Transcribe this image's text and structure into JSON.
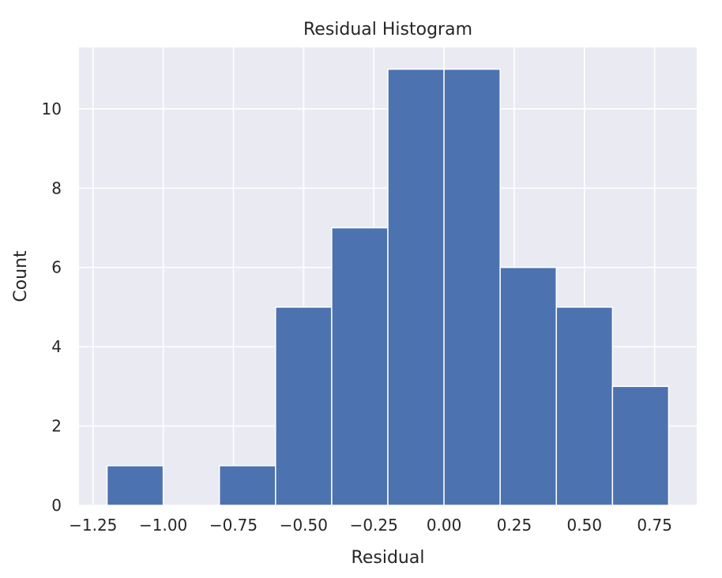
{
  "chart_data": {
    "type": "bar",
    "title": "Residual Histogram",
    "xlabel": "Residual",
    "ylabel": "Count",
    "bins": [
      {
        "start": -1.2,
        "end": -1.0,
        "count": 1
      },
      {
        "start": -1.0,
        "end": -0.8,
        "count": 0
      },
      {
        "start": -0.8,
        "end": -0.6,
        "count": 1
      },
      {
        "start": -0.6,
        "end": -0.4,
        "count": 5
      },
      {
        "start": -0.4,
        "end": -0.2,
        "count": 7
      },
      {
        "start": -0.2,
        "end": 0.0,
        "count": 11
      },
      {
        "start": 0.0,
        "end": 0.2,
        "count": 11
      },
      {
        "start": 0.2,
        "end": 0.4,
        "count": 6
      },
      {
        "start": 0.4,
        "end": 0.6,
        "count": 5
      },
      {
        "start": 0.6,
        "end": 0.8,
        "count": 3
      }
    ],
    "xlim": [
      -1.3,
      0.9
    ],
    "ylim": [
      0,
      11.55
    ],
    "xticks": [
      -1.25,
      -1.0,
      -0.75,
      -0.5,
      -0.25,
      0.0,
      0.25,
      0.5,
      0.75
    ],
    "xtick_labels": [
      "−1.25",
      "−1.00",
      "−0.75",
      "−0.50",
      "−0.25",
      "0.00",
      "0.25",
      "0.50",
      "0.75"
    ],
    "yticks": [
      0,
      2,
      4,
      6,
      8,
      10
    ],
    "ytick_labels": [
      "0",
      "2",
      "4",
      "6",
      "8",
      "10"
    ],
    "bar_color": "#4c72b0",
    "background_color": "#eaeaf2",
    "grid": true
  }
}
